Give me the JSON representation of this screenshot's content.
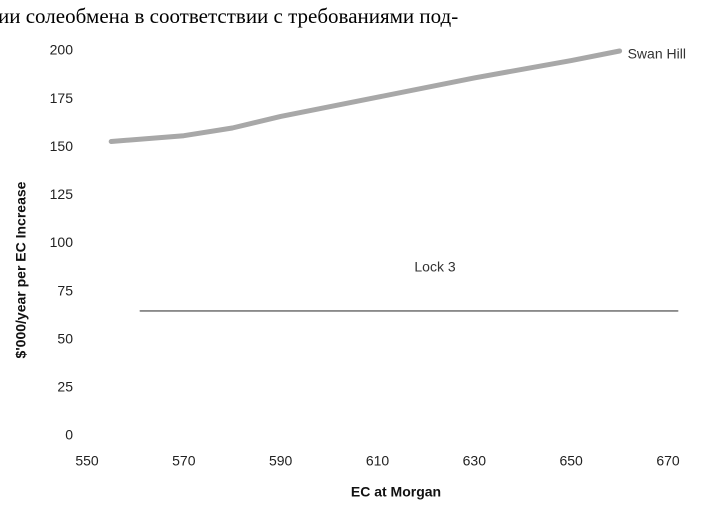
{
  "page_text": "ии солеобмена в соответствии с требованиями под-",
  "chart_data": {
    "type": "line",
    "x_label": "EC at Morgan",
    "y_label": "$'000/year per EC Increase",
    "xlim": [
      550,
      670
    ],
    "xticks": [
      550,
      570,
      590,
      610,
      630,
      650,
      670
    ],
    "ylim": [
      0,
      200
    ],
    "yticks": [
      0,
      25,
      50,
      75,
      100,
      125,
      150,
      175,
      200
    ],
    "grid": false,
    "series": [
      {
        "name": "Swan Hill",
        "color": "#a8a8a8",
        "x": [
          555,
          570,
          580,
          590,
          610,
          630,
          650,
          660
        ],
        "values": [
          153,
          156,
          160,
          166,
          176,
          186,
          195,
          200
        ]
      },
      {
        "name": "Lock 3",
        "color": "#7a7a7a",
        "x": [
          561,
          672
        ],
        "values": [
          65,
          65
        ]
      }
    ]
  }
}
